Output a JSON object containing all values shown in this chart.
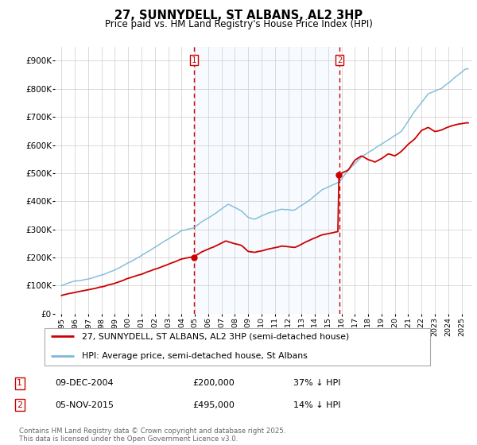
{
  "title": "27, SUNNYDELL, ST ALBANS, AL2 3HP",
  "subtitle": "Price paid vs. HM Land Registry's House Price Index (HPI)",
  "hpi_label": "HPI: Average price, semi-detached house, St Albans",
  "property_label": "27, SUNNYDELL, ST ALBANS, AL2 3HP (semi-detached house)",
  "sale1_date": "09-DEC-2004",
  "sale1_price": 200000,
  "sale1_hpi_diff": "37% ↓ HPI",
  "sale2_date": "05-NOV-2015",
  "sale2_price": 495000,
  "sale2_hpi_diff": "14% ↓ HPI",
  "sale1_x": 2004.94,
  "sale2_x": 2015.84,
  "hpi_color": "#7ab8d9",
  "property_color": "#cc0000",
  "vline_color": "#cc0000",
  "shade_color": "#ddeeff",
  "background_color": "#ffffff",
  "grid_color": "#cccccc",
  "ylim": [
    0,
    950000
  ],
  "xlim": [
    1994.5,
    2025.8
  ],
  "footnote": "Contains HM Land Registry data © Crown copyright and database right 2025.\nThis data is licensed under the Open Government Licence v3.0.",
  "yticks": [
    0,
    100000,
    200000,
    300000,
    400000,
    500000,
    600000,
    700000,
    800000,
    900000
  ],
  "ytick_labels": [
    "£0",
    "£100K",
    "£200K",
    "£300K",
    "£400K",
    "£500K",
    "£600K",
    "£700K",
    "£800K",
    "£900K"
  ],
  "xticks": [
    1995,
    1996,
    1997,
    1998,
    1999,
    2000,
    2001,
    2002,
    2003,
    2004,
    2005,
    2006,
    2007,
    2008,
    2009,
    2010,
    2011,
    2012,
    2013,
    2014,
    2015,
    2016,
    2017,
    2018,
    2019,
    2020,
    2021,
    2022,
    2023,
    2024,
    2025
  ]
}
